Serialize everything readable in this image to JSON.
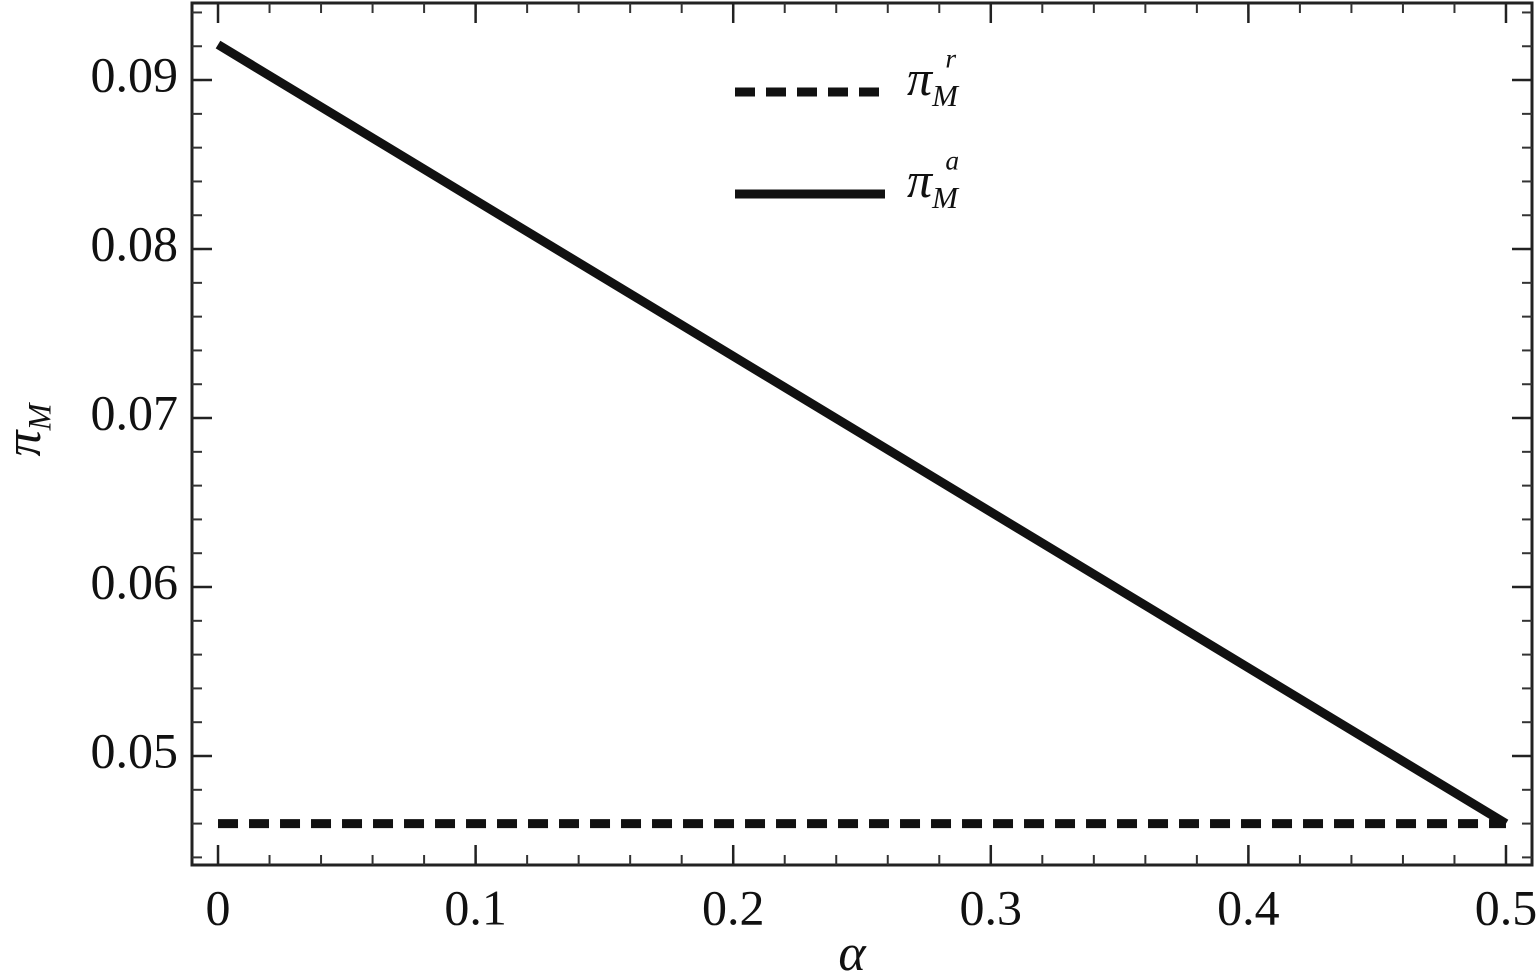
{
  "chart_data": {
    "type": "line",
    "x": [
      0,
      0.5
    ],
    "series": [
      {
        "name": "πMr",
        "color": "#111111",
        "dash": true,
        "values": [
          0.046,
          0.046
        ]
      },
      {
        "name": "πMa",
        "color": "#111111",
        "dash": false,
        "values": [
          0.0921,
          0.046
        ]
      }
    ],
    "x_label": "α",
    "y_label": "πM",
    "xlim": [
      -0.0101,
      0.5101
    ],
    "ylim": [
      0.04355,
      0.09456
    ],
    "xticks": [
      0,
      0.1,
      0.2,
      0.3,
      0.4,
      0.5
    ],
    "yticks": [
      0.05,
      0.06,
      0.07,
      0.08,
      0.09
    ],
    "legend": "top-center",
    "grid": false
  }
}
